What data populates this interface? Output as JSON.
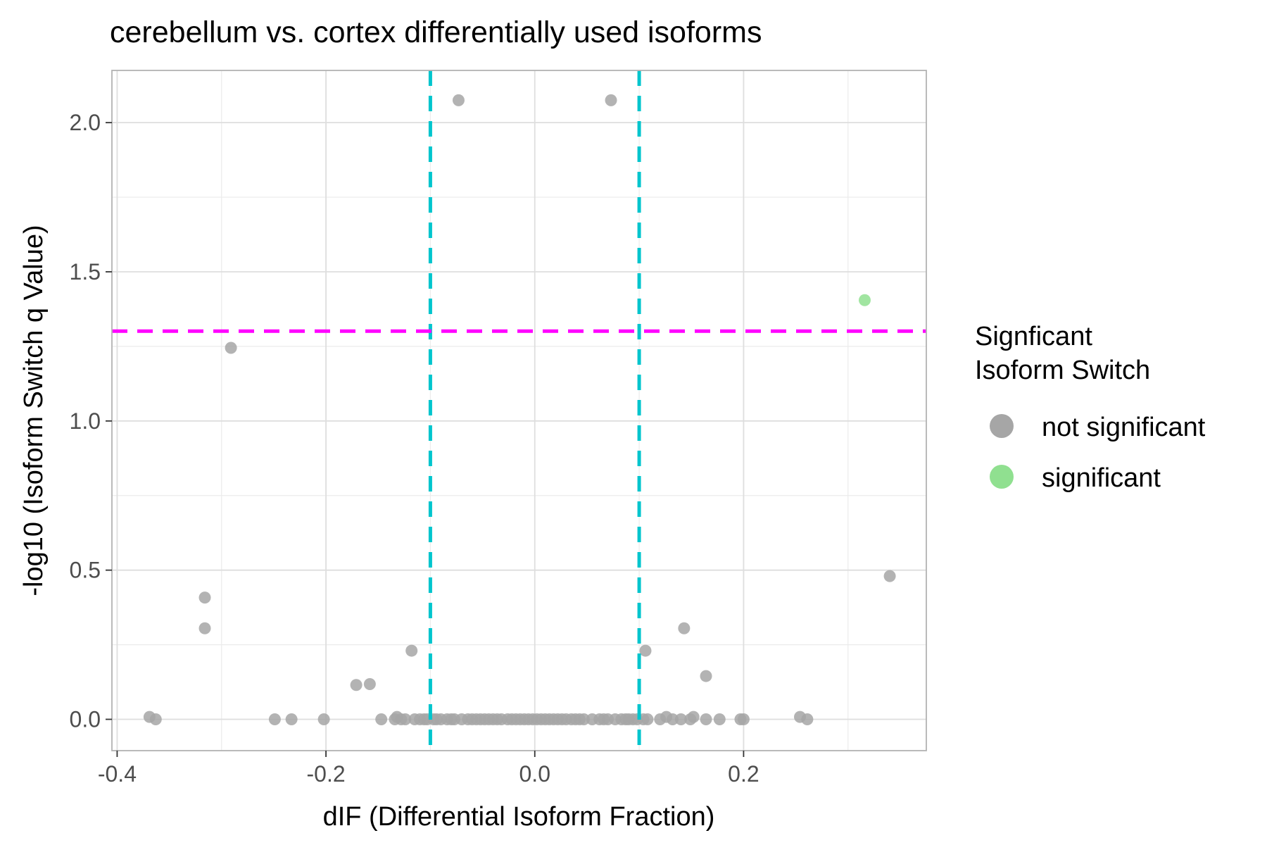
{
  "chart_data": {
    "type": "scatter",
    "title": "cerebellum vs. cortex differentially used isoforms",
    "xlabel": "dIF (Differential Isoform Fraction)",
    "ylabel": "-log10 (Isoform Switch q Value)",
    "xlim": [
      -0.405,
      0.375
    ],
    "ylim": [
      -0.105,
      2.175
    ],
    "x_ticks": [
      -0.4,
      -0.2,
      0.0,
      0.2
    ],
    "x_tick_labels": [
      "-0.4",
      "-0.2",
      "0.0",
      "0.2"
    ],
    "y_ticks": [
      0.0,
      0.5,
      1.0,
      1.5,
      2.0
    ],
    "y_tick_labels": [
      "0.0",
      "0.5",
      "1.0",
      "1.5",
      "2.0"
    ],
    "grid": true,
    "legend_position": "right",
    "legend": {
      "title": [
        "Signficant",
        "Isoform Switch"
      ],
      "entries": [
        {
          "label": "not significant",
          "color": "#a6a6a6"
        },
        {
          "label": "significant",
          "color": "#90e090"
        }
      ]
    },
    "reference_lines": [
      {
        "orientation": "vertical",
        "value": -0.1,
        "color": "#00c5cd",
        "style": "dashed"
      },
      {
        "orientation": "vertical",
        "value": 0.1,
        "color": "#00c5cd",
        "style": "dashed"
      },
      {
        "orientation": "horizontal",
        "value": 1.301,
        "color": "#ff00ff",
        "style": "dashed"
      }
    ],
    "series": [
      {
        "name": "not significant",
        "color": "#a6a6a6",
        "points": [
          [
            -0.073,
            2.075
          ],
          [
            0.073,
            2.075
          ],
          [
            -0.291,
            1.245
          ],
          [
            0.34,
            0.48
          ],
          [
            -0.316,
            0.408
          ],
          [
            -0.316,
            0.305
          ],
          [
            0.143,
            0.305
          ],
          [
            -0.118,
            0.23
          ],
          [
            0.106,
            0.23
          ],
          [
            0.164,
            0.145
          ],
          [
            -0.171,
            0.115
          ],
          [
            -0.158,
            0.118
          ],
          [
            -0.369,
            0.008
          ],
          [
            -0.363,
            0.0
          ],
          [
            -0.249,
            0.0
          ],
          [
            -0.233,
            0.0
          ],
          [
            -0.202,
            0.0
          ],
          [
            -0.147,
            0.0
          ],
          [
            -0.134,
            0.0
          ],
          [
            -0.132,
            0.008
          ],
          [
            -0.128,
            0.0
          ],
          [
            -0.124,
            0.0
          ],
          [
            -0.115,
            0.0
          ],
          [
            -0.11,
            0.0
          ],
          [
            -0.106,
            0.0
          ],
          [
            -0.103,
            0.0
          ],
          [
            -0.097,
            0.0
          ],
          [
            -0.094,
            0.0
          ],
          [
            -0.09,
            0.0
          ],
          [
            -0.084,
            0.0
          ],
          [
            -0.08,
            0.0
          ],
          [
            -0.077,
            0.0
          ],
          [
            -0.07,
            0.0
          ],
          [
            -0.064,
            0.0
          ],
          [
            -0.06,
            0.0
          ],
          [
            -0.056,
            0.0
          ],
          [
            -0.052,
            0.0
          ],
          [
            -0.048,
            0.0
          ],
          [
            -0.044,
            0.0
          ],
          [
            -0.04,
            0.0
          ],
          [
            -0.036,
            0.0
          ],
          [
            -0.032,
            0.0
          ],
          [
            -0.026,
            0.0
          ],
          [
            -0.022,
            0.0
          ],
          [
            -0.018,
            0.0
          ],
          [
            -0.014,
            0.0
          ],
          [
            -0.01,
            0.0
          ],
          [
            -0.006,
            0.0
          ],
          [
            -0.002,
            0.0
          ],
          [
            0.002,
            0.0
          ],
          [
            0.006,
            0.0
          ],
          [
            0.01,
            0.0
          ],
          [
            0.014,
            0.0
          ],
          [
            0.018,
            0.0
          ],
          [
            0.022,
            0.0
          ],
          [
            0.026,
            0.0
          ],
          [
            0.03,
            0.0
          ],
          [
            0.035,
            0.0
          ],
          [
            0.039,
            0.0
          ],
          [
            0.043,
            0.0
          ],
          [
            0.047,
            0.0
          ],
          [
            0.055,
            0.0
          ],
          [
            0.062,
            0.0
          ],
          [
            0.066,
            0.0
          ],
          [
            0.07,
            0.0
          ],
          [
            0.077,
            0.0
          ],
          [
            0.083,
            0.0
          ],
          [
            0.087,
            0.0
          ],
          [
            0.09,
            0.0
          ],
          [
            0.094,
            0.0
          ],
          [
            0.098,
            0.0
          ],
          [
            0.104,
            0.0
          ],
          [
            0.108,
            0.0
          ],
          [
            0.12,
            0.0
          ],
          [
            0.126,
            0.008
          ],
          [
            0.132,
            0.0
          ],
          [
            0.14,
            0.0
          ],
          [
            0.149,
            0.0
          ],
          [
            0.152,
            0.008
          ],
          [
            0.164,
            0.0
          ],
          [
            0.177,
            0.0
          ],
          [
            0.197,
            0.0
          ],
          [
            0.2,
            0.0
          ],
          [
            0.254,
            0.008
          ],
          [
            0.261,
            0.0
          ]
        ]
      },
      {
        "name": "significant",
        "color": "#90e090",
        "points": [
          [
            0.316,
            1.405
          ]
        ]
      }
    ]
  }
}
